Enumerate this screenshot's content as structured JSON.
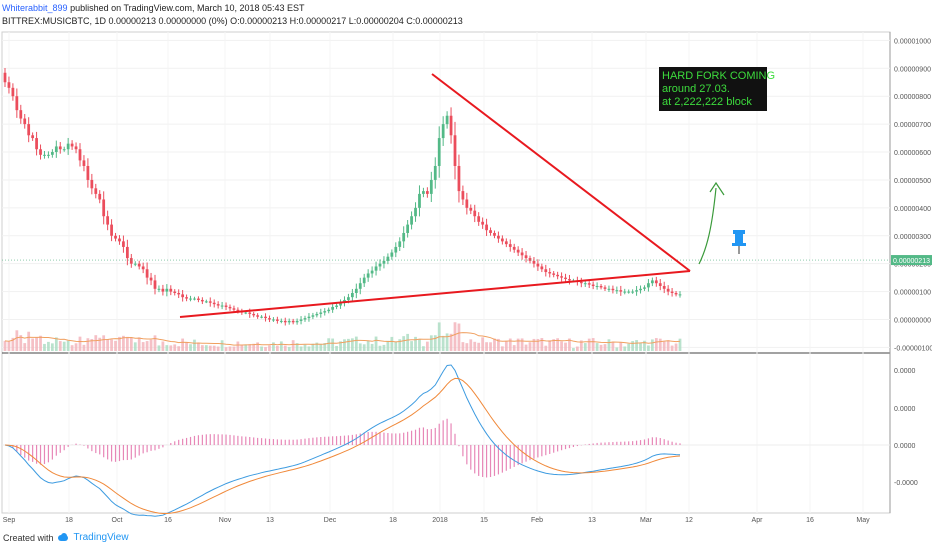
{
  "header": {
    "author": "Whiterabbit_899",
    "published": "published on TradingView.com, March 10, 2018 05:43 EST",
    "symbol_line": "BITTREX:MUSICBTC, 1D 0.00000213 0.00000000 (0%) O:0.00000213 H:0.00000217 L:0.00000204 C:0.00000213"
  },
  "footer": {
    "created_with": "Created with",
    "brand": "TradingView"
  },
  "colors": {
    "up": "#53b987",
    "down": "#eb4d5c",
    "trendline": "#e8191f",
    "macd": "#3d9be0",
    "signal": "#f0893a",
    "hist": "#e060a0",
    "annotation_bg": "#111111",
    "annotation_text": "#3ddc3d",
    "arrow": "#3a9a3a",
    "pin": "#2196f3"
  },
  "chart_data": {
    "type": "candlestick",
    "title": "",
    "x_ticks": [
      "Sep",
      "18",
      "Oct",
      "16",
      "Nov",
      "13",
      "Dec",
      "18",
      "2018",
      "15",
      "Feb",
      "13",
      "Mar",
      "12",
      "Apr",
      "16",
      "May"
    ],
    "y_ticks": [
      "0.00001000",
      "0.00000900",
      "0.00000800",
      "0.00000700",
      "0.00000600",
      "0.00000500",
      "0.00000400",
      "0.00000300",
      "0.00000200",
      "0.00000100",
      "0.00000000",
      "-0.00000100"
    ],
    "y_range": [
      -1.2e-06,
      1.03e-05
    ],
    "last_price_label": "0.00000213",
    "last_price": 2.13e-06,
    "macd_ticks": [
      "0.0000",
      "0.0000",
      "0.0000",
      "-0.0000"
    ],
    "annotation": [
      "HARD FORK COMING",
      "around 27.03.",
      "at 2,222,222 block"
    ],
    "close": [
      8.5,
      8.3,
      8.0,
      7.5,
      7.2,
      7.0,
      6.6,
      6.5,
      6.1,
      5.9,
      5.9,
      5.9,
      6.0,
      6.2,
      6.1,
      6.1,
      6.3,
      6.2,
      6.1,
      5.7,
      5.5,
      5.0,
      4.7,
      4.5,
      4.3,
      3.7,
      3.4,
      3.0,
      2.9,
      2.8,
      2.6,
      2.2,
      2.0,
      2.0,
      1.9,
      1.8,
      1.5,
      1.4,
      1.1,
      1.1,
      1.0,
      1.1,
      1.0,
      0.95,
      0.9,
      0.8,
      0.75,
      0.75,
      0.75,
      0.7,
      0.65,
      0.65,
      0.6,
      0.55,
      0.5,
      0.5,
      0.45,
      0.4,
      0.35,
      0.3,
      0.25,
      0.25,
      0.2,
      0.15,
      0.1,
      0.1,
      0.05,
      0.0,
      0.0,
      -0.05,
      -0.05,
      -0.1,
      -0.05,
      -0.1,
      -0.05,
      0.0,
      0.05,
      0.1,
      0.15,
      0.2,
      0.25,
      0.3,
      0.35,
      0.45,
      0.5,
      0.6,
      0.7,
      0.8,
      0.95,
      1.1,
      1.3,
      1.5,
      1.65,
      1.75,
      1.9,
      2.0,
      2.1,
      2.25,
      2.4,
      2.6,
      2.8,
      3.1,
      3.4,
      3.7,
      4.0,
      4.5,
      4.6,
      4.5,
      5.0,
      5.5,
      6.5,
      7.0,
      7.3,
      6.6,
      5.5,
      4.6,
      4.3,
      4.0,
      3.9,
      3.7,
      3.5,
      3.4,
      3.2,
      3.1,
      3.0,
      2.9,
      2.8,
      2.7,
      2.6,
      2.5,
      2.4,
      2.3,
      2.2,
      2.1,
      2.0,
      1.9,
      1.8,
      1.7,
      1.65,
      1.6,
      1.55,
      1.5,
      1.45,
      1.4,
      1.4,
      1.35,
      1.3,
      1.3,
      1.25,
      1.2,
      1.2,
      1.15,
      1.1,
      1.1,
      1.05,
      1.05,
      1.0,
      1.0,
      1.0,
      1.0,
      1.05,
      1.1,
      1.15,
      1.3,
      1.4,
      1.3,
      1.2,
      1.1,
      1.0,
      0.95,
      0.9,
      0.9
    ]
  }
}
